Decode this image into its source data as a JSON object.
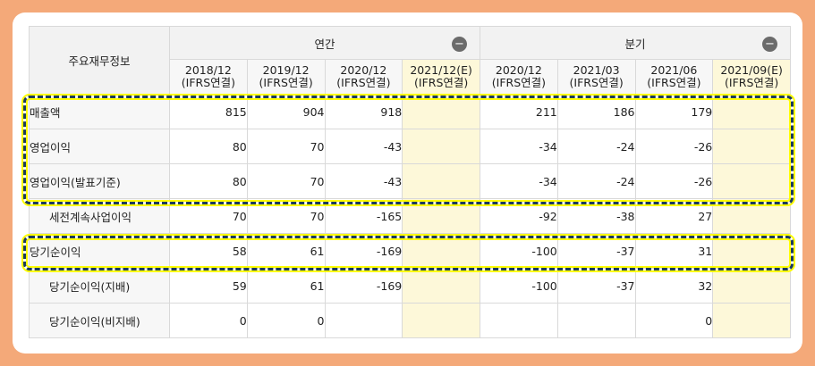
{
  "table": {
    "corner_label": "주요재무정보",
    "groups": [
      {
        "label": "연간",
        "collapse_symbol": "−"
      },
      {
        "label": "분기",
        "collapse_symbol": "−"
      }
    ],
    "columns": [
      {
        "period": "2018/12",
        "basis": "(IFRS연결)"
      },
      {
        "period": "2019/12",
        "basis": "(IFRS연결)"
      },
      {
        "period": "2020/12",
        "basis": "(IFRS연결)"
      },
      {
        "period": "2021/12(E)",
        "basis": "(IFRS연결)"
      },
      {
        "period": "2020/12",
        "basis": "(IFRS연결)"
      },
      {
        "period": "2021/03",
        "basis": "(IFRS연결)"
      },
      {
        "period": "2021/06",
        "basis": "(IFRS연결)"
      },
      {
        "period": "2021/09(E)",
        "basis": "(IFRS연결)"
      }
    ],
    "rows": [
      {
        "label": "매출액",
        "values": [
          "815",
          "904",
          "918",
          "",
          "211",
          "186",
          "179",
          ""
        ]
      },
      {
        "label": "영업이익",
        "values": [
          "80",
          "70",
          "-43",
          "",
          "-34",
          "-24",
          "-26",
          ""
        ]
      },
      {
        "label": "영업이익(발표기준)",
        "values": [
          "80",
          "70",
          "-43",
          "",
          "-34",
          "-24",
          "-26",
          ""
        ]
      },
      {
        "label": "세전계속사업이익",
        "values": [
          "70",
          "70",
          "-165",
          "",
          "-92",
          "-38",
          "27",
          ""
        ]
      },
      {
        "label": "당기순이익",
        "values": [
          "58",
          "61",
          "-169",
          "",
          "-100",
          "-37",
          "31",
          ""
        ]
      },
      {
        "label": "당기순이익(지배)",
        "values": [
          "59",
          "61",
          "-169",
          "",
          "-100",
          "-37",
          "32",
          ""
        ]
      },
      {
        "label": "당기순이익(비지배)",
        "values": [
          "0",
          "0",
          "",
          "",
          "",
          "",
          "0",
          ""
        ]
      }
    ]
  },
  "colors": {
    "background": "#f4a979",
    "negative": "#d1322e",
    "estimate_fill": "#fdf8d9",
    "highlight_border": "#1b3a5b",
    "highlight_glow": "#ffff00"
  }
}
